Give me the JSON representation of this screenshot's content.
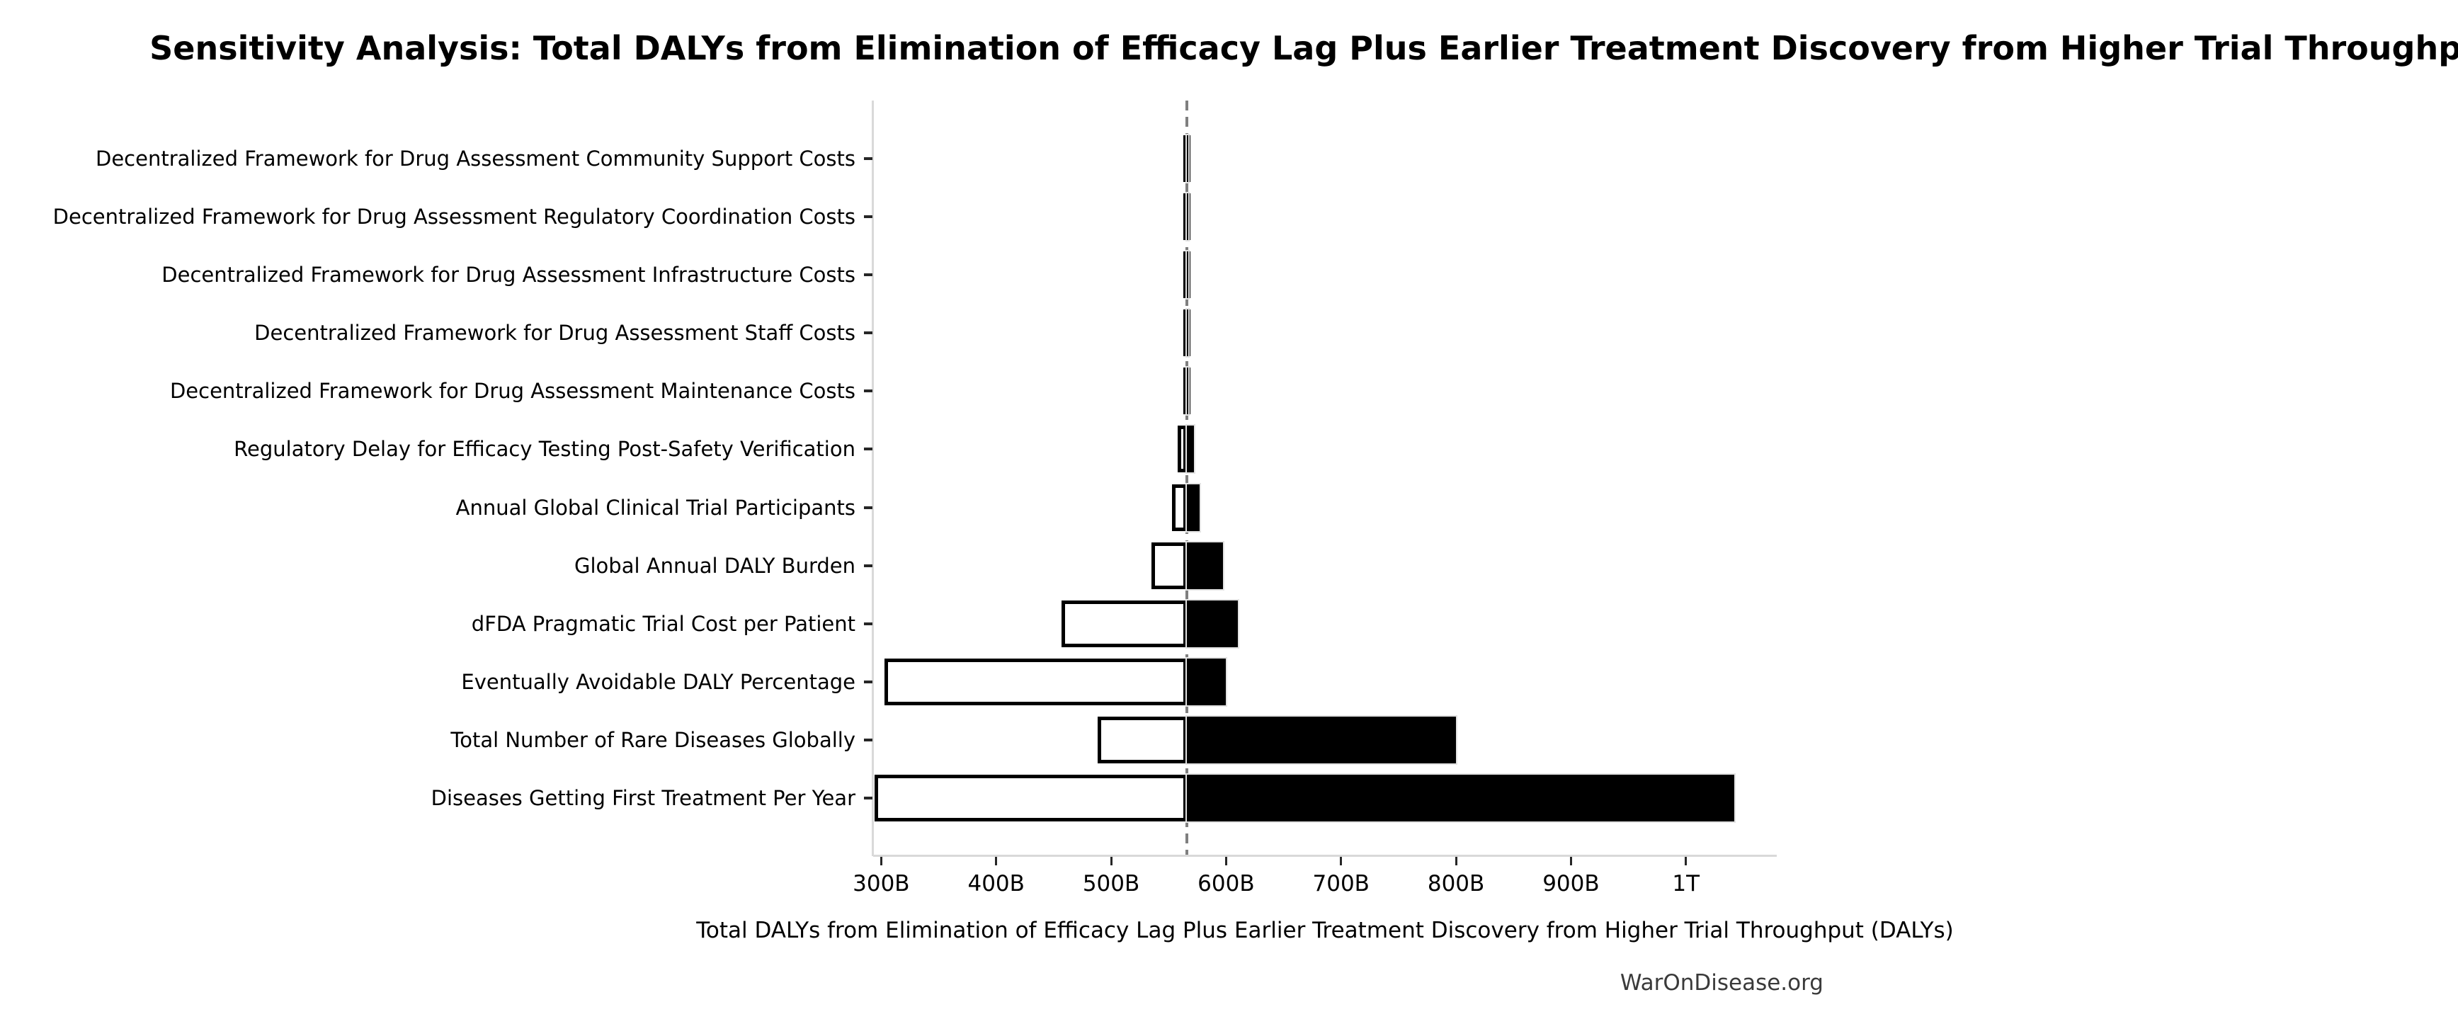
{
  "watermark": "WarOnDisease.org",
  "colors": {
    "high_bar_fill": "#000000",
    "low_bar_fill": "#ffffff",
    "low_bar_edge": "#000000",
    "baseline_line": "#7f7f7f",
    "axis_spine": "#d9d9d9",
    "tick_mark": "#262626",
    "watermark_text": "#3a3a3a",
    "background": "#ffffff"
  },
  "chart_data": {
    "type": "bar",
    "variant": "tornado-sensitivity",
    "orientation": "horizontal",
    "title": "Sensitivity Analysis: Total DALYs from Elimination of Efficacy Lag Plus Earlier Treatment Discovery from Higher Trial Throughput",
    "xlabel": "Total DALYs from Elimination of Efficacy Lag Plus Earlier Treatment Discovery from Higher Trial Throughput (DALYs)",
    "value_unit": "DALYs",
    "values_in": "billions",
    "baseline_value": 566,
    "xlim": [
      293,
      1079
    ],
    "grid": false,
    "legend_position": "none",
    "x_ticks": [
      {
        "value": 300,
        "label": "300B"
      },
      {
        "value": 400,
        "label": "400B"
      },
      {
        "value": 500,
        "label": "500B"
      },
      {
        "value": 600,
        "label": "600B"
      },
      {
        "value": 700,
        "label": "700B"
      },
      {
        "value": 800,
        "label": "800B"
      },
      {
        "value": 900,
        "label": "900B"
      },
      {
        "value": 1000,
        "label": "1T"
      }
    ],
    "rows": [
      {
        "label": "Decentralized Framework for Drug Assessment Community Support Costs",
        "low": 563,
        "high": 567
      },
      {
        "label": "Decentralized Framework for Drug Assessment Regulatory Coordination Costs",
        "low": 563,
        "high": 567
      },
      {
        "label": "Decentralized Framework for Drug Assessment Infrastructure Costs",
        "low": 563,
        "high": 567
      },
      {
        "label": "Decentralized Framework for Drug Assessment Staff Costs",
        "low": 563,
        "high": 567
      },
      {
        "label": "Decentralized Framework for Drug Assessment Maintenance Costs",
        "low": 563,
        "high": 567
      },
      {
        "label": "Regulatory Delay for Efficacy Testing Post-Safety Verification",
        "low": 558,
        "high": 572
      },
      {
        "label": "Annual Global Clinical Trial Participants",
        "low": 553,
        "high": 577
      },
      {
        "label": "Global Annual DALY Burden",
        "low": 535,
        "high": 597
      },
      {
        "label": "dFDA Pragmatic Trial Cost per Patient",
        "low": 457,
        "high": 610
      },
      {
        "label": "Eventually Avoidable DALY Percentage",
        "low": 303,
        "high": 600
      },
      {
        "label": "Total Number of Rare Diseases Globally",
        "low": 488,
        "high": 800
      },
      {
        "label": "Diseases Getting First Treatment Per Year",
        "low": 294,
        "high": 1042
      }
    ]
  }
}
